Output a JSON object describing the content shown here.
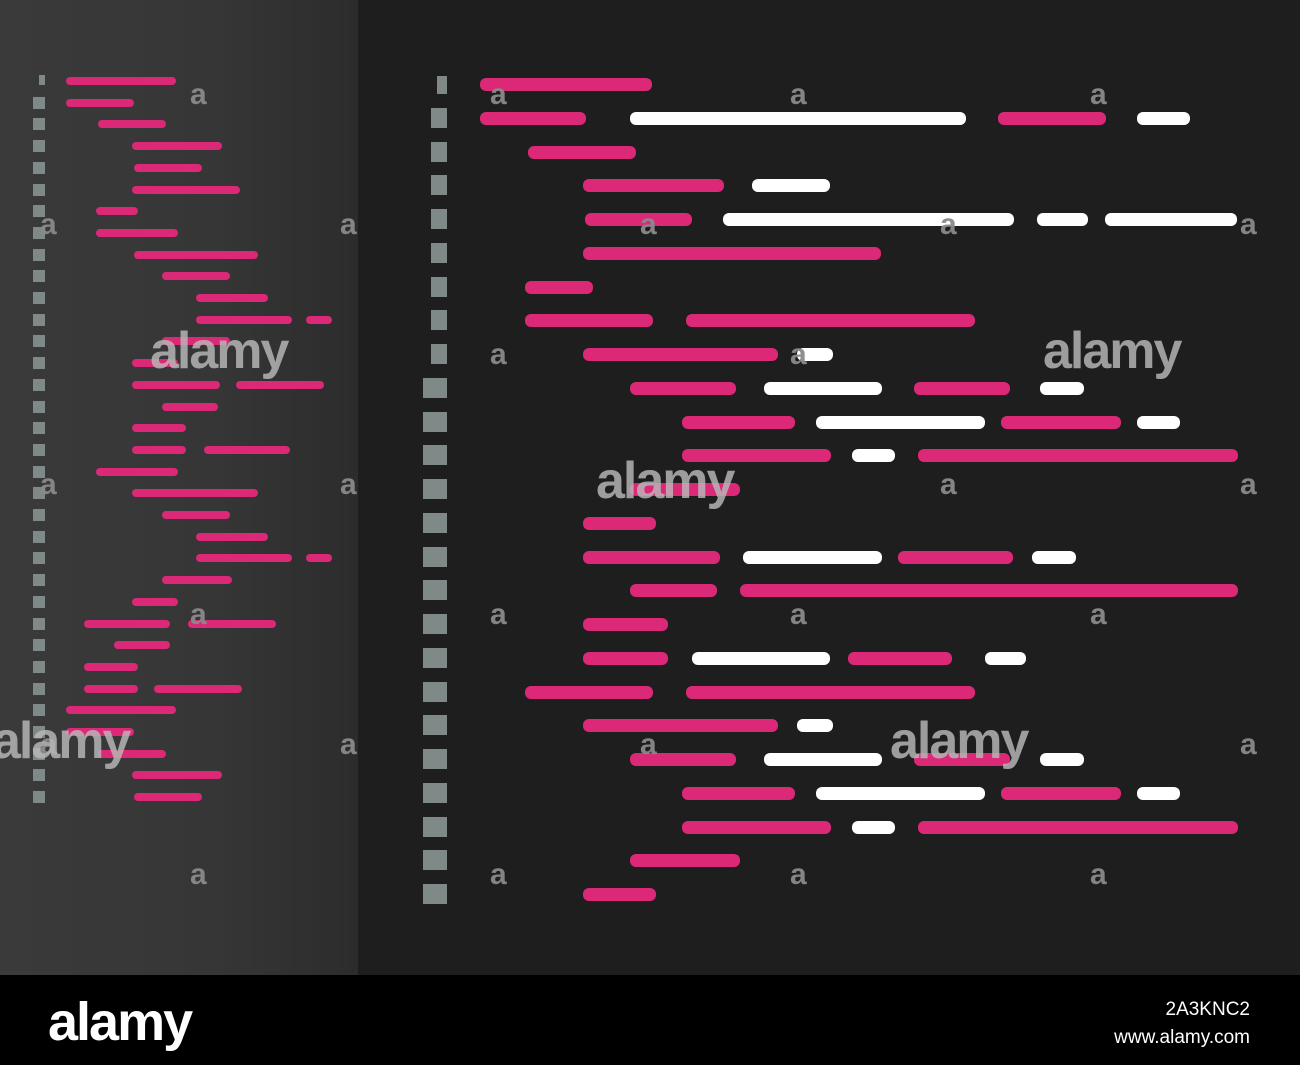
{
  "colors": {
    "keyword": "#db2877",
    "text": "#ffffff",
    "gutter": "#7f8a88",
    "left_bg": "#363636",
    "right_bg": "#1e1e1e",
    "footer_bg": "#000000"
  },
  "watermark": {
    "word": "alamy",
    "letter": "a"
  },
  "footer": {
    "logo": "alamy",
    "image_id": "2A3KNC2",
    "url": "www.alamy.com"
  }
}
